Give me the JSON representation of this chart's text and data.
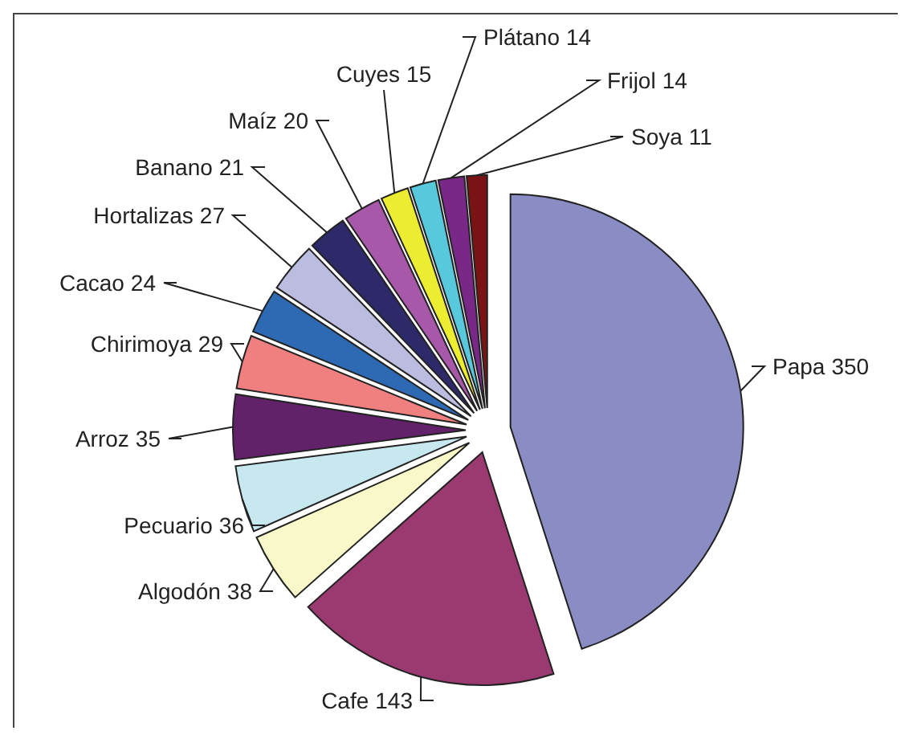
{
  "chart_data": {
    "type": "pie",
    "data_labels": true,
    "categories": [
      "Papa",
      "Cafe",
      "Algodón",
      "Pecuario",
      "Arroz",
      "Chirimoya",
      "Cacao",
      "Hortalizas",
      "Banano",
      "Maíz",
      "Cuyes",
      "Plátano",
      "Frijol",
      "Soya"
    ],
    "values": [
      350,
      143,
      38,
      36,
      35,
      29,
      24,
      27,
      21,
      20,
      15,
      14,
      14,
      11
    ],
    "colors": [
      "#8a8cc4",
      "#9a3a70",
      "#f8f8c8",
      "#c8e8f0",
      "#62226a",
      "#f08080",
      "#2e6ab4",
      "#bcbce0",
      "#2e2a6a",
      "#a858a8",
      "#ecec30",
      "#58c8dc",
      "#7a2888",
      "#7a1414"
    ]
  }
}
